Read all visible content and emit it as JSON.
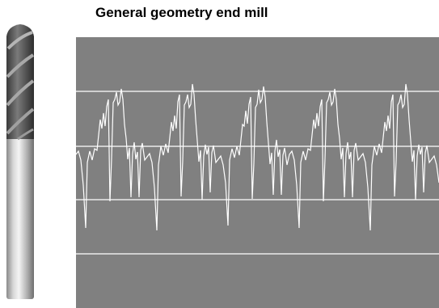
{
  "title": "General geometry end mill"
}
